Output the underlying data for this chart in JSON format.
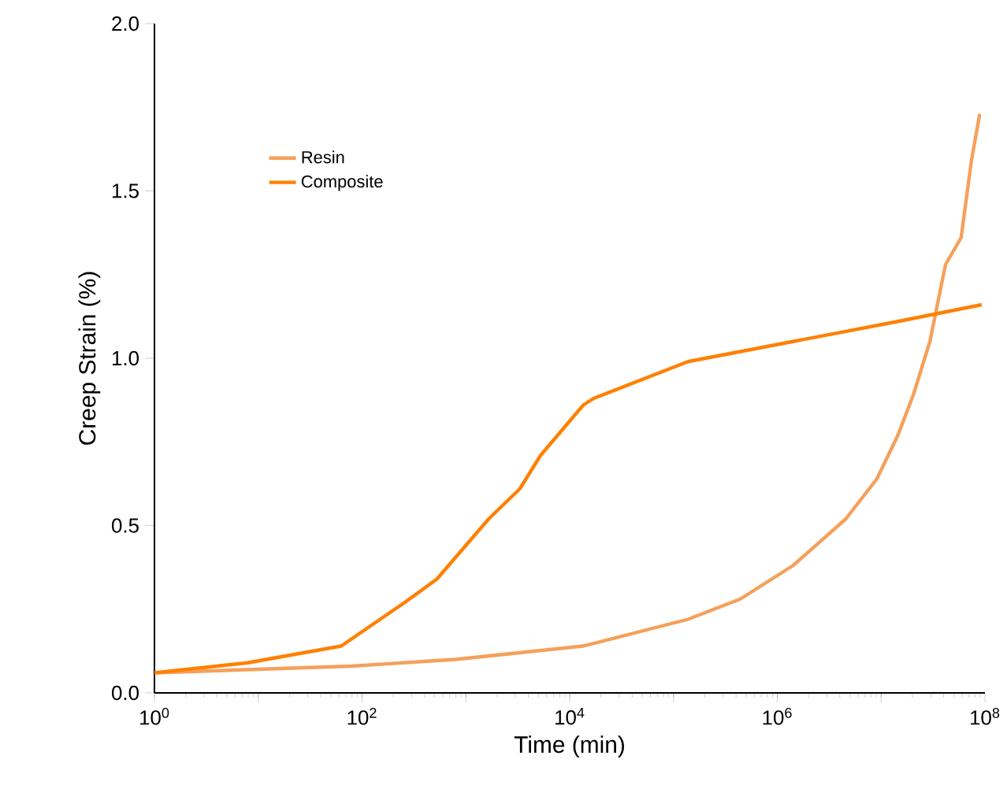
{
  "chart_data": {
    "type": "line",
    "xlabel": "Time (min)",
    "ylabel": "Creep Strain (%)",
    "log": "x",
    "grid": false,
    "legend": "top left",
    "marker": "none",
    "line_style": "solid",
    "xlim": [
      1,
      100000000
    ],
    "ylim": [
      0,
      2.0
    ],
    "xticks": [
      {
        "value": 1,
        "label": "10$^{0}$"
      },
      {
        "value": 10,
        "label": null
      },
      {
        "value": 100,
        "label": "10$^{2}$"
      },
      {
        "value": 1000,
        "label": null
      },
      {
        "value": 10000,
        "label": "10$^{4}$"
      },
      {
        "value": 100000,
        "label": null
      },
      {
        "value": 1000000,
        "label": "10$^{6}$"
      },
      {
        "value": 10000000,
        "label": null
      },
      {
        "value": 100000000,
        "label": "10$^{8}$"
      }
    ],
    "yticks": [
      {
        "value": 0,
        "label": "0.0"
      },
      {
        "value": 0.5,
        "label": "0.5"
      },
      {
        "value": 1.0,
        "label": "1.0"
      },
      {
        "value": 1.5,
        "label": "1.5"
      },
      {
        "value": 2.0,
        "label": "2.0"
      }
    ],
    "series": [
      {
        "name": "Resin",
        "color": "#f5a05a",
        "x": [
          1,
          79,
          794,
          13500,
          138000,
          437000,
          1410000,
          4570000,
          9120000,
          14500000,
          20400000,
          29500000,
          41700000,
          58900000,
          74100000,
          89100000
        ],
        "values": [
          0.06,
          0.08,
          0.1,
          0.14,
          0.22,
          0.28,
          0.38,
          0.52,
          0.64,
          0.77,
          0.89,
          1.05,
          1.28,
          1.36,
          1.59,
          1.73
        ]
      },
      {
        "name": "Composite",
        "color": "#ff8000",
        "x": [
          1,
          7.9,
          63,
          257,
          525,
          1660,
          3310,
          5250,
          13500,
          17000,
          138000,
          1410000,
          14500000,
          93000000
        ],
        "values": [
          0.06,
          0.09,
          0.14,
          0.27,
          0.34,
          0.52,
          0.61,
          0.71,
          0.86,
          0.88,
          0.99,
          1.05,
          1.11,
          1.16
        ]
      }
    ]
  }
}
